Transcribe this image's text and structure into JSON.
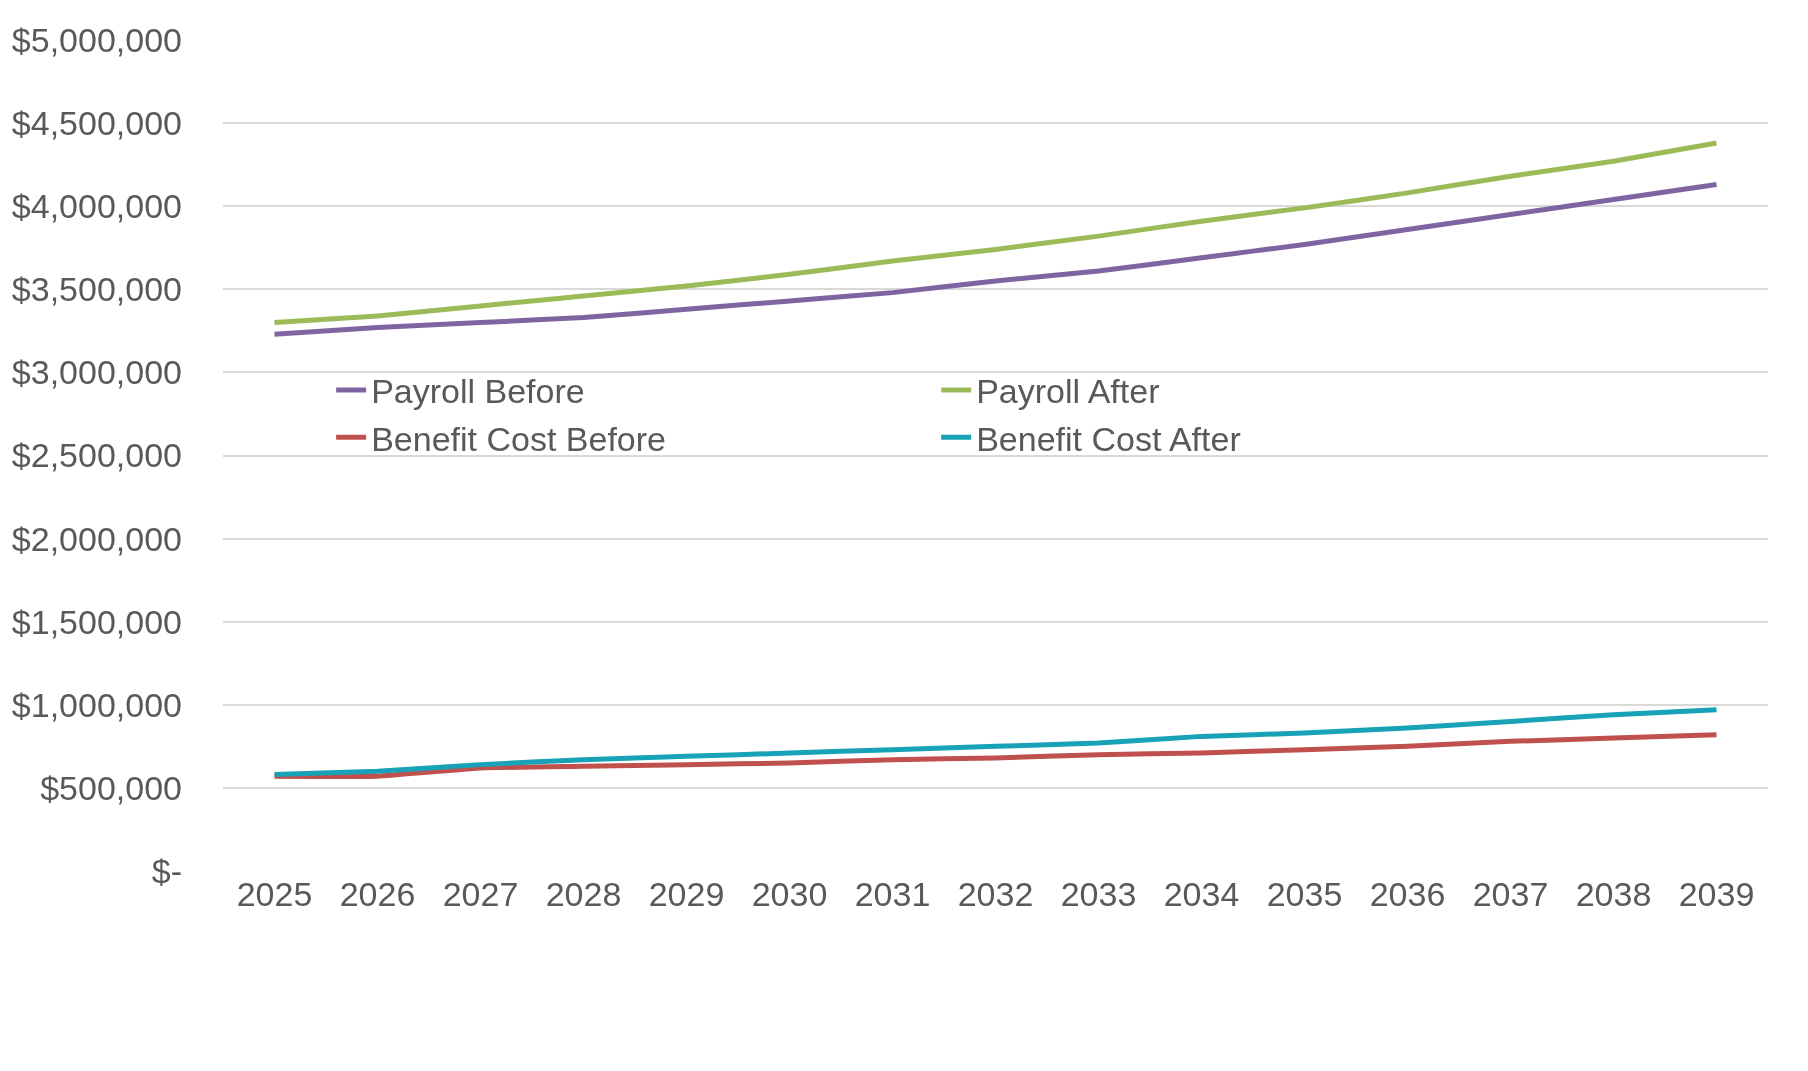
{
  "chart_data": {
    "type": "line",
    "categories": [
      "2025",
      "2026",
      "2027",
      "2028",
      "2029",
      "2030",
      "2031",
      "2032",
      "2033",
      "2034",
      "2035",
      "2036",
      "2037",
      "2038",
      "2039"
    ],
    "series": [
      {
        "name": "Payroll Before",
        "color": "#8064a2",
        "values": [
          3230000,
          3270000,
          3300000,
          3330000,
          3380000,
          3430000,
          3480000,
          3550000,
          3610000,
          3690000,
          3770000,
          3860000,
          3950000,
          4040000,
          4130000
        ]
      },
      {
        "name": "Payroll After",
        "color": "#9bbb59",
        "values": [
          3300000,
          3340000,
          3400000,
          3460000,
          3520000,
          3590000,
          3670000,
          3740000,
          3820000,
          3910000,
          3990000,
          4080000,
          4180000,
          4270000,
          4380000
        ]
      },
      {
        "name": "Benefit Cost Before",
        "color": "#c0504d",
        "values": [
          570000,
          570000,
          620000,
          630000,
          640000,
          650000,
          670000,
          680000,
          700000,
          710000,
          730000,
          750000,
          780000,
          800000,
          820000
        ]
      },
      {
        "name": "Benefit Cost After",
        "color": "#17a2b8",
        "values": [
          580000,
          600000,
          640000,
          670000,
          690000,
          710000,
          730000,
          750000,
          770000,
          810000,
          830000,
          860000,
          900000,
          940000,
          970000
        ]
      }
    ],
    "ylim": [
      0,
      5000000
    ],
    "yticks": [
      {
        "value": 0,
        "label": "$-"
      },
      {
        "value": 500000,
        "label": "$500,000"
      },
      {
        "value": 1000000,
        "label": "$1,000,000"
      },
      {
        "value": 1500000,
        "label": "$1,500,000"
      },
      {
        "value": 2000000,
        "label": "$2,000,000"
      },
      {
        "value": 2500000,
        "label": "$2,500,000"
      },
      {
        "value": 3000000,
        "label": "$3,000,000"
      },
      {
        "value": 3500000,
        "label": "$3,500,000"
      },
      {
        "value": 4000000,
        "label": "$4,000,000"
      },
      {
        "value": 4500000,
        "label": "$4,500,000"
      },
      {
        "value": 5000000,
        "label": "$5,000,000"
      }
    ],
    "grid": "y",
    "legend": "left",
    "marker": "none",
    "line_style": "solid"
  }
}
